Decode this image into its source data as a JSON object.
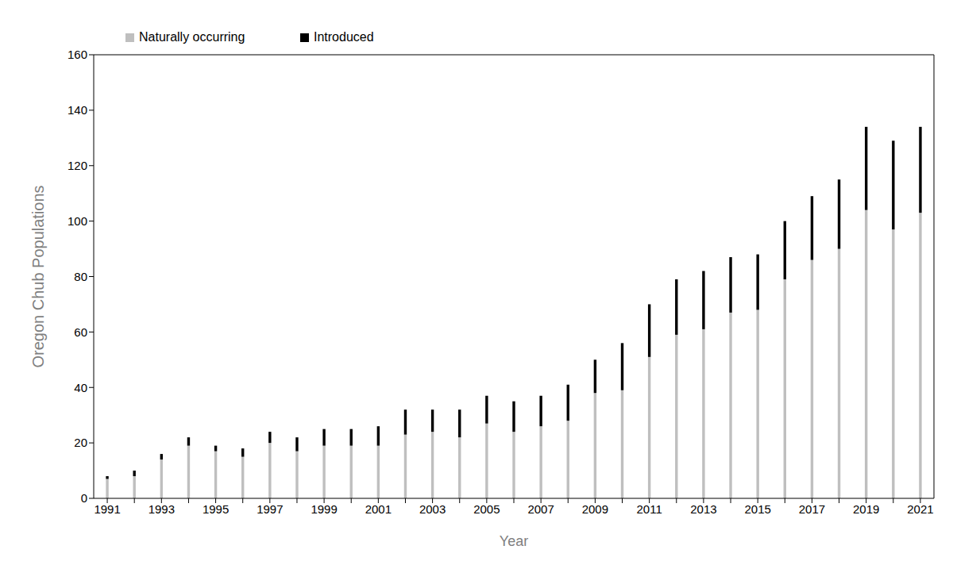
{
  "chart_data": {
    "type": "bar",
    "x_label": "Year",
    "y_label": "Oregon Chub Populations",
    "categories": [
      "1991",
      null,
      "1993",
      null,
      "1995",
      null,
      "1997",
      null,
      "1999",
      null,
      "2001",
      null,
      "2003",
      null,
      "2005",
      null,
      "2007",
      null,
      "2009",
      null,
      "2011",
      null,
      "2013",
      null,
      "2015",
      null,
      "2017",
      null,
      "2019",
      null,
      "2021"
    ],
    "series": [
      {
        "name": "Naturally occurring",
        "color": "#bfbfbf",
        "values": [
          7,
          8,
          14,
          19,
          17,
          15,
          20,
          17,
          19,
          19,
          19,
          23,
          24,
          22,
          27,
          24,
          26,
          28,
          38,
          39,
          51,
          59,
          61,
          67,
          68,
          79,
          86,
          90,
          104,
          97,
          103
        ]
      },
      {
        "name": "Introduced",
        "color": "#000000",
        "values": [
          1,
          2,
          2,
          3,
          2,
          3,
          4,
          5,
          6,
          6,
          7,
          9,
          8,
          10,
          10,
          11,
          11,
          13,
          12,
          17,
          19,
          20,
          21,
          20,
          20,
          21,
          23,
          25,
          30,
          32,
          31
        ]
      }
    ],
    "ylim": [
      0,
      160
    ],
    "yticks": [
      0,
      20,
      40,
      60,
      80,
      100,
      120,
      140,
      160
    ],
    "stacked": true,
    "grid": false,
    "legend": "upper left"
  }
}
